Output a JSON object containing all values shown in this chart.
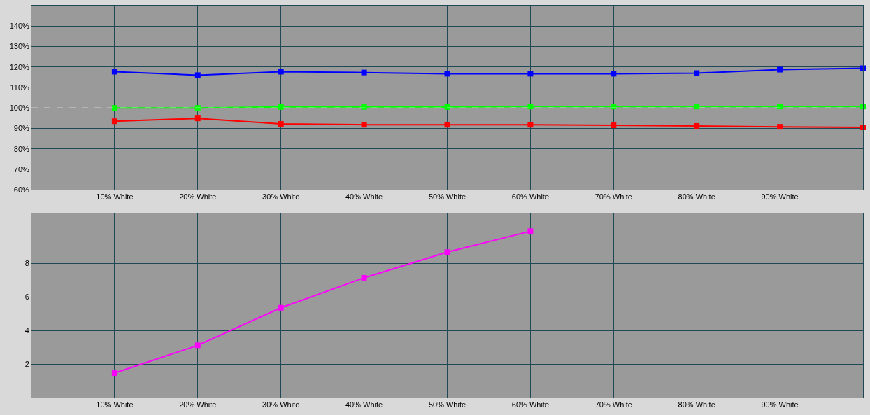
{
  "chart_data": [
    {
      "type": "line",
      "x": [
        10,
        20,
        30,
        40,
        50,
        60,
        70,
        80,
        90,
        100
      ],
      "xlim": [
        0,
        100
      ],
      "xticks": [
        {
          "value": 10,
          "label": "10% White"
        },
        {
          "value": 20,
          "label": "20% White"
        },
        {
          "value": 30,
          "label": "30% White"
        },
        {
          "value": 40,
          "label": "40% White"
        },
        {
          "value": 50,
          "label": "50% White"
        },
        {
          "value": 60,
          "label": "60% White"
        },
        {
          "value": 70,
          "label": "70% White"
        },
        {
          "value": 80,
          "label": "80% White"
        },
        {
          "value": 90,
          "label": "90% White"
        },
        {
          "value": 100,
          "label": null
        }
      ],
      "ylim": [
        60,
        150
      ],
      "yticks": [
        {
          "value": 60,
          "label": "60%"
        },
        {
          "value": 70,
          "label": "70%"
        },
        {
          "value": 80,
          "label": "80%"
        },
        {
          "value": 90,
          "label": "90%"
        },
        {
          "value": 100,
          "label": "100%"
        },
        {
          "value": 110,
          "label": "110%"
        },
        {
          "value": 120,
          "label": "120%"
        },
        {
          "value": 130,
          "label": "130%"
        },
        {
          "value": 140,
          "label": "140%"
        },
        {
          "value": 150,
          "label": null
        }
      ],
      "series": [
        {
          "color": "#0000ff",
          "values": [
            117.7,
            116.0,
            117.7,
            117.3,
            116.7,
            116.7,
            116.7,
            117.0,
            118.7,
            119.4
          ]
        },
        {
          "color": "#00ff00",
          "values": [
            100.0,
            100.0,
            100.5,
            100.5,
            100.5,
            100.7,
            100.7,
            100.7,
            100.7,
            100.7
          ]
        },
        {
          "color": "#ff0000",
          "values": [
            93.5,
            94.9,
            92.2,
            91.8,
            91.8,
            91.8,
            91.5,
            91.2,
            90.8,
            90.5
          ]
        }
      ],
      "ref_lines": [
        {
          "axis": "y",
          "value": 100,
          "label": null,
          "color": "#ffffff",
          "line_style": "dashed"
        }
      ],
      "grid": true,
      "marker": "square",
      "line_style": "solid"
    },
    {
      "type": "line",
      "x": [
        10,
        20,
        30,
        40,
        50,
        60
      ],
      "xlim": [
        0,
        100
      ],
      "xticks": [
        {
          "value": 10,
          "label": "10% White"
        },
        {
          "value": 20,
          "label": "20% White"
        },
        {
          "value": 30,
          "label": "30% White"
        },
        {
          "value": 40,
          "label": "40% White"
        },
        {
          "value": 50,
          "label": "50% White"
        },
        {
          "value": 60,
          "label": "60% White"
        },
        {
          "value": 70,
          "label": "70% White"
        },
        {
          "value": 80,
          "label": "80% White"
        },
        {
          "value": 90,
          "label": "90% White"
        },
        {
          "value": 100,
          "label": null
        }
      ],
      "ylim": [
        0,
        11
      ],
      "yticks": [
        {
          "value": 0,
          "label": null
        },
        2,
        4,
        6,
        8,
        {
          "value": 10,
          "label": null
        }
      ],
      "series": [
        {
          "color": "#ff00ff",
          "values": [
            1.46,
            3.12,
            5.36,
            7.15,
            8.68,
            9.93
          ]
        }
      ],
      "grid": true,
      "marker": "square",
      "line_style": "solid"
    }
  ]
}
